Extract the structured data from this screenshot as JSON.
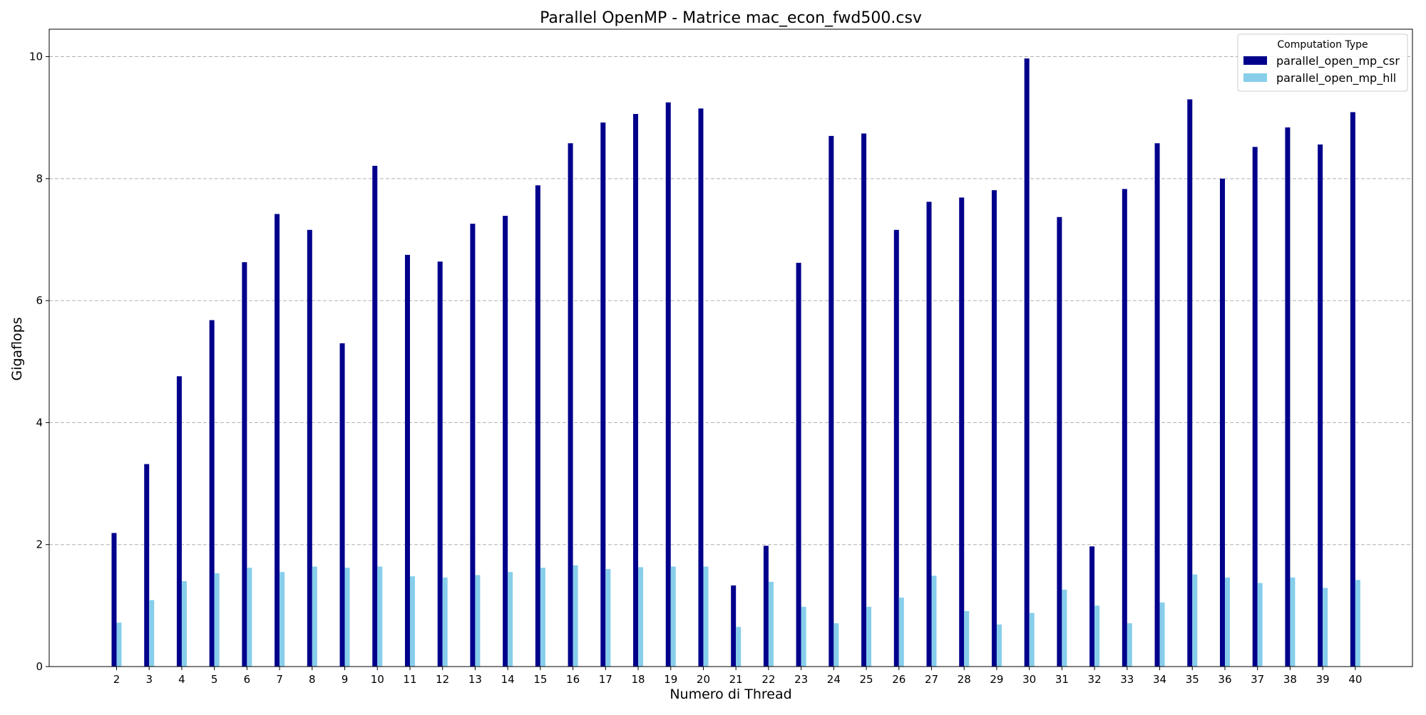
{
  "chart_data": {
    "type": "bar",
    "title": "Parallel OpenMP - Matrice mac_econ_fwd500.csv",
    "xlabel": "Numero di Thread",
    "ylabel": "Gigaflops",
    "ylim": [
      0,
      10.45
    ],
    "yticks": [
      "0",
      "2",
      "4",
      "6",
      "8",
      "10"
    ],
    "grid": "y-dashed",
    "legend_placement": "top-right",
    "legend_title": "Computation Type",
    "categories": [
      "2",
      "3",
      "4",
      "5",
      "6",
      "7",
      "8",
      "9",
      "10",
      "11",
      "12",
      "13",
      "14",
      "15",
      "16",
      "17",
      "18",
      "19",
      "20",
      "21",
      "22",
      "23",
      "24",
      "25",
      "26",
      "27",
      "28",
      "29",
      "30",
      "31",
      "32",
      "33",
      "34",
      "35",
      "36",
      "37",
      "38",
      "39",
      "40"
    ],
    "series": [
      {
        "name": "parallel_open_mp_csr",
        "color": "#00008b",
        "values": [
          2.19,
          3.32,
          4.76,
          5.68,
          6.63,
          7.42,
          7.16,
          5.3,
          8.21,
          6.75,
          6.64,
          7.26,
          7.39,
          7.89,
          8.58,
          8.92,
          9.06,
          9.25,
          9.15,
          1.33,
          1.98,
          6.62,
          8.7,
          8.74,
          7.16,
          7.62,
          7.69,
          7.81,
          9.97,
          7.37,
          1.97,
          7.83,
          8.58,
          9.3,
          8.0,
          8.52,
          8.84,
          8.56,
          9.09
        ]
      },
      {
        "name": "parallel_open_mp_hll",
        "color": "#87ceeb",
        "values": [
          0.72,
          1.09,
          1.4,
          1.53,
          1.62,
          1.55,
          1.64,
          1.62,
          1.64,
          1.48,
          1.46,
          1.5,
          1.55,
          1.62,
          1.66,
          1.6,
          1.63,
          1.64,
          1.64,
          0.65,
          1.39,
          0.98,
          0.71,
          0.98,
          1.13,
          1.49,
          0.91,
          0.69,
          0.88,
          1.26,
          1.0,
          0.71,
          1.05,
          1.51,
          1.46,
          1.37,
          1.46,
          1.29,
          1.42
        ]
      }
    ]
  }
}
